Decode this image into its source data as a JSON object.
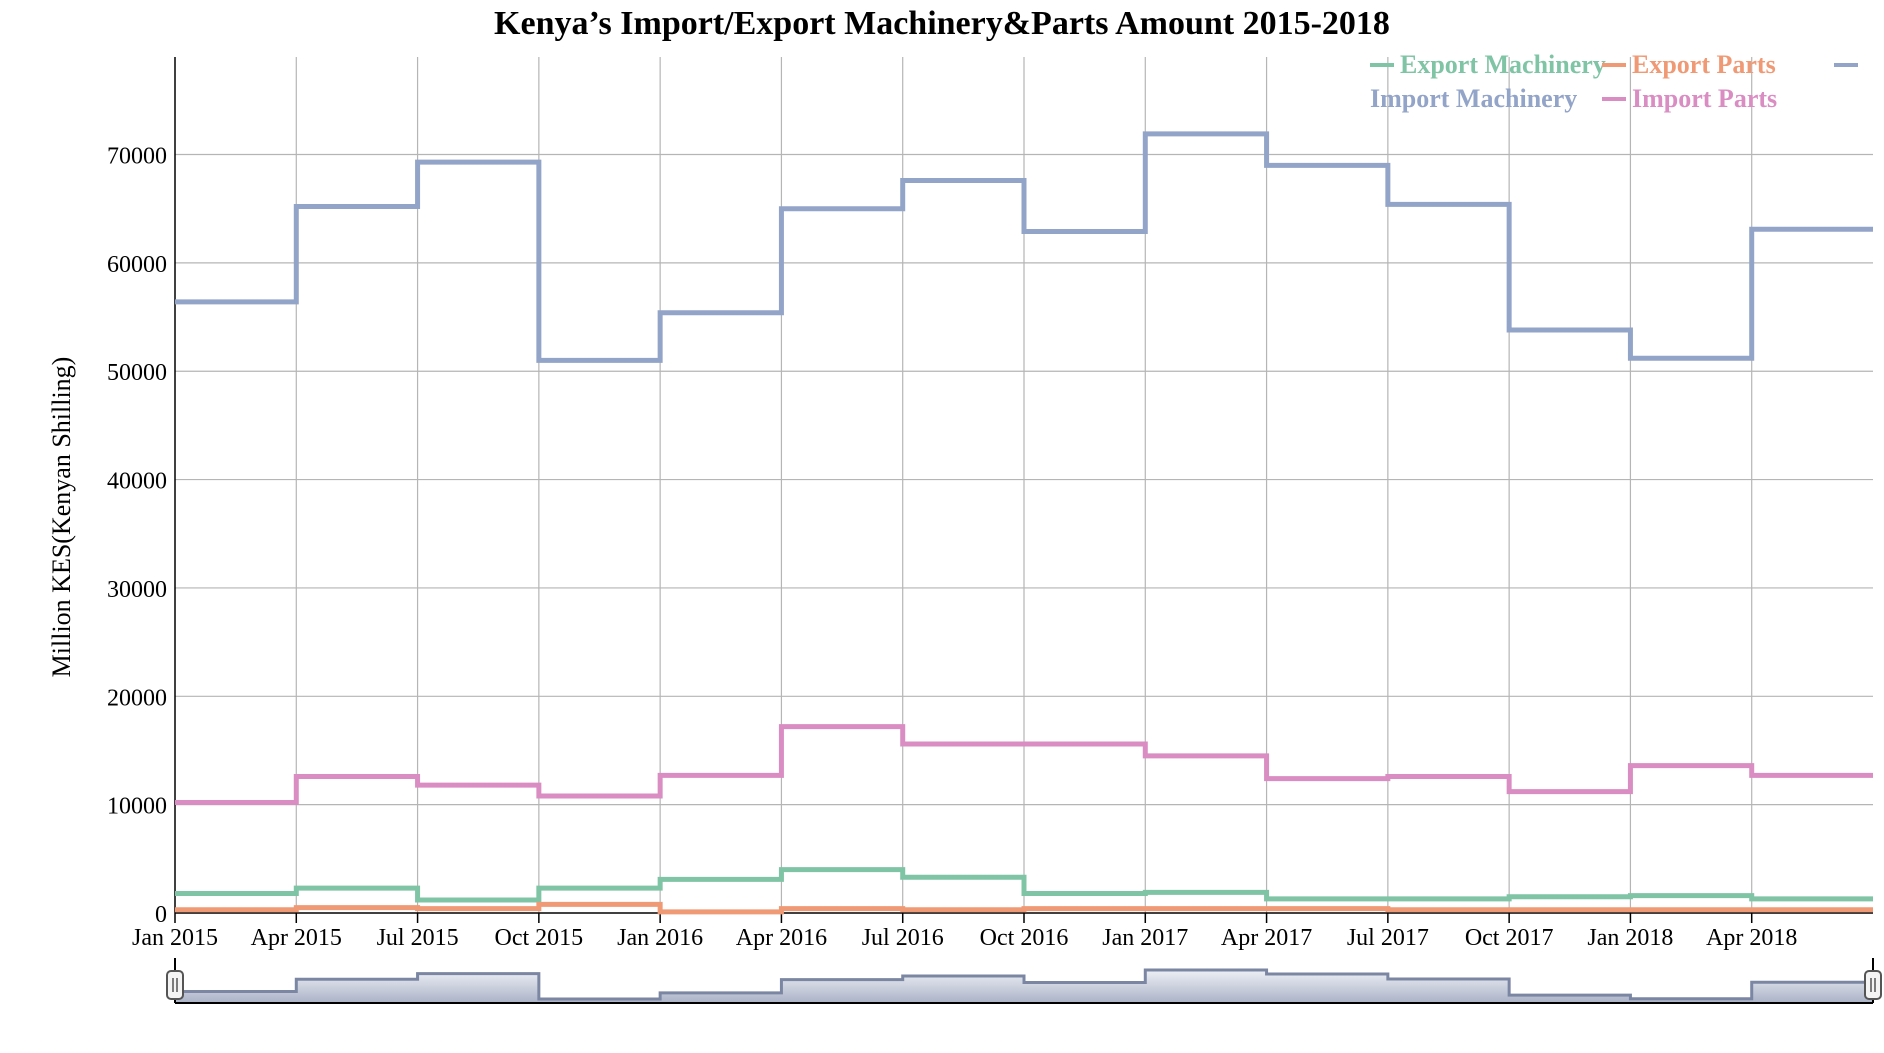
{
  "chart_data": {
    "type": "line",
    "step": true,
    "title": "Kenya’s Import/Export Machinery&Parts Amount 2015-2018",
    "xlabel": "",
    "ylabel": "Million KES(Kenyan Shilling)",
    "x": [
      "2015-01",
      "2015-04",
      "2015-07",
      "2015-10",
      "2016-01",
      "2016-04",
      "2016-07",
      "2016-10",
      "2017-01",
      "2017-04",
      "2017-07",
      "2017-10",
      "2018-01",
      "2018-04"
    ],
    "xticks": [
      "Jan 2015",
      "Apr 2015",
      "Jul 2015",
      "Oct 2015",
      "Jan 2016",
      "Apr 2016",
      "Jul 2016",
      "Oct 2016",
      "Jan 2017",
      "Apr 2017",
      "Jul 2017",
      "Oct 2017",
      "Jan 2018",
      "Apr 2018"
    ],
    "ylim": [
      0,
      79000
    ],
    "yticks": [
      0,
      10000,
      20000,
      30000,
      40000,
      50000,
      60000,
      70000
    ],
    "grid": true,
    "legend_position": "top-right",
    "series": [
      {
        "name": "Export Machinery",
        "color": "#7fc4a4",
        "values": [
          1800,
          2300,
          1200,
          2300,
          3100,
          4000,
          3300,
          1800,
          1900,
          1300,
          1300,
          1500,
          1600,
          1300
        ]
      },
      {
        "name": "Export Parts",
        "color": "#f09a75",
        "values": [
          300,
          500,
          400,
          800,
          100,
          400,
          300,
          400,
          400,
          400,
          300,
          300,
          300,
          300
        ]
      },
      {
        "name": "Import Machinery",
        "color": "#93a4c9",
        "values": [
          56400,
          65200,
          69300,
          51000,
          55400,
          65000,
          67600,
          62900,
          71900,
          69000,
          65400,
          53800,
          51200,
          63100
        ]
      },
      {
        "name": "Import Parts",
        "color": "#da8dc3",
        "values": [
          10200,
          12600,
          11800,
          10800,
          12700,
          17200,
          15600,
          15600,
          14500,
          12400,
          12600,
          11200,
          13600,
          12700
        ]
      }
    ],
    "navigator": {
      "series": "Import Machinery",
      "handles": true
    }
  }
}
